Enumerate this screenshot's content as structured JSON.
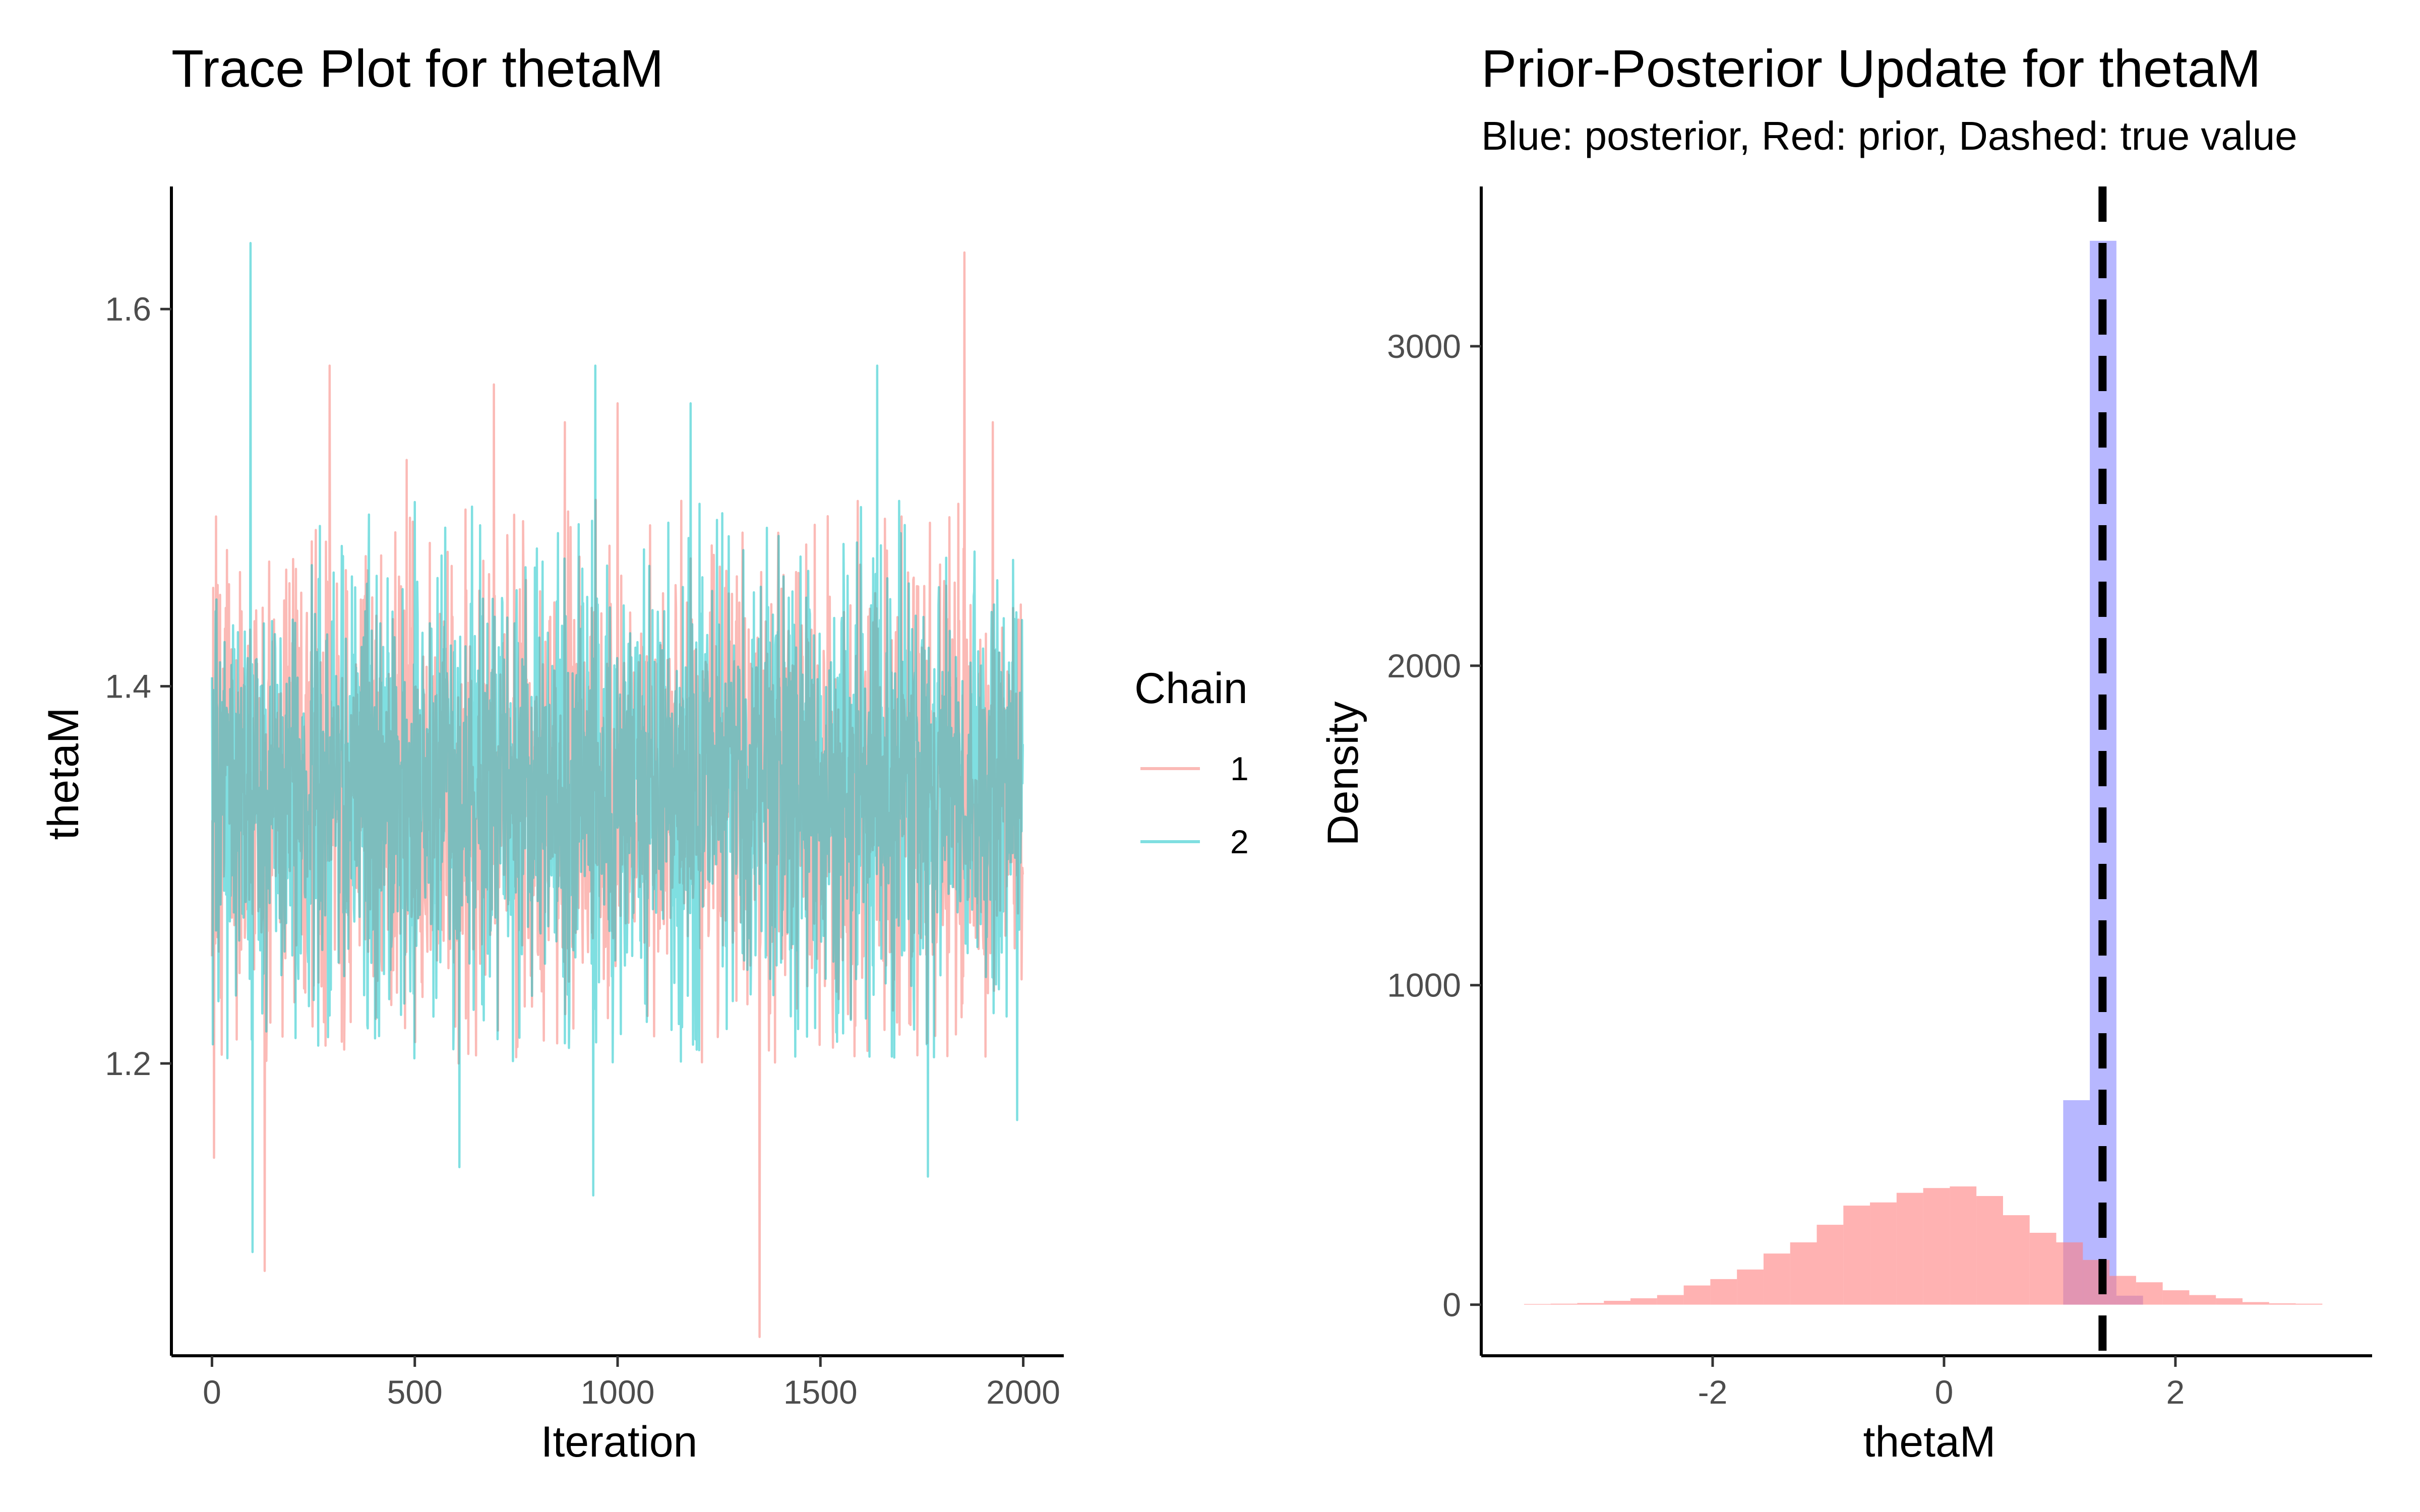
{
  "colors": {
    "chain1": "#f8766d",
    "chain2": "#00bfc4",
    "posterior": "#7070ff",
    "prior": "#ff7f7f",
    "true_value": "#000000"
  },
  "chart_data": [
    {
      "type": "line",
      "title": "Trace Plot for thetaM",
      "xlabel": "Iteration",
      "ylabel": "thetaM",
      "xlim": [
        -100,
        2100
      ],
      "ylim": [
        1.045,
        1.665
      ],
      "xticks": [
        {
          "value": 0,
          "label": "0"
        },
        {
          "value": 500,
          "label": "500"
        },
        {
          "value": 1000,
          "label": "1000"
        },
        {
          "value": 1500,
          "label": "1500"
        },
        {
          "value": 2000,
          "label": "2000"
        }
      ],
      "yticks": [
        {
          "value": 1.2,
          "label": "1.2"
        },
        {
          "value": 1.4,
          "label": "1.4"
        },
        {
          "value": 1.6,
          "label": "1.6"
        }
      ],
      "grid": false,
      "legend": {
        "title": "Chain",
        "position": "right"
      },
      "n_iterations": 2000,
      "series": [
        {
          "name": "1",
          "color": "#f8766d",
          "center": 1.345,
          "spread": 0.058,
          "extremes": [
            {
              "x": 5,
              "y": 1.15
            },
            {
              "x": 10,
              "y": 1.49
            },
            {
              "x": 130,
              "y": 1.09
            },
            {
              "x": 290,
              "y": 1.57
            },
            {
              "x": 480,
              "y": 1.52
            },
            {
              "x": 695,
              "y": 1.56
            },
            {
              "x": 870,
              "y": 1.54
            },
            {
              "x": 1000,
              "y": 1.55
            },
            {
              "x": 1350,
              "y": 1.055
            },
            {
              "x": 1700,
              "y": 1.49
            },
            {
              "x": 1855,
              "y": 1.63
            },
            {
              "x": 1925,
              "y": 1.54
            }
          ]
        },
        {
          "name": "2",
          "color": "#00bfc4",
          "center": 1.345,
          "spread": 0.058,
          "extremes": [
            {
              "x": 95,
              "y": 1.635
            },
            {
              "x": 100,
              "y": 1.1
            },
            {
              "x": 610,
              "y": 1.145
            },
            {
              "x": 940,
              "y": 1.13
            },
            {
              "x": 945,
              "y": 1.57
            },
            {
              "x": 1180,
              "y": 1.55
            },
            {
              "x": 1640,
              "y": 1.57
            },
            {
              "x": 1765,
              "y": 1.14
            },
            {
              "x": 1985,
              "y": 1.17
            }
          ]
        }
      ]
    },
    {
      "type": "bar",
      "title": "Prior-Posterior Update for thetaM",
      "subtitle": "Blue: posterior, Red: prior, Dashed: true value",
      "xlabel": "thetaM",
      "ylabel": "Density",
      "xlim": [
        -4.0,
        3.7
      ],
      "ylim": [
        -160,
        3500
      ],
      "xticks": [
        {
          "value": -2,
          "label": "-2"
        },
        {
          "value": 0,
          "label": "0"
        },
        {
          "value": 2,
          "label": "2"
        }
      ],
      "yticks": [
        {
          "value": 0,
          "label": "0"
        },
        {
          "value": 1000,
          "label": "1000"
        },
        {
          "value": 2000,
          "label": "2000"
        },
        {
          "value": 3000,
          "label": "3000"
        }
      ],
      "grid": false,
      "true_value": 1.37,
      "bin_width": 0.23,
      "prior_bins": [
        {
          "x0": -3.63,
          "value": 2
        },
        {
          "x0": -3.4,
          "value": 3
        },
        {
          "x0": -3.17,
          "value": 5
        },
        {
          "x0": -2.94,
          "value": 12
        },
        {
          "x0": -2.71,
          "value": 20
        },
        {
          "x0": -2.48,
          "value": 30
        },
        {
          "x0": -2.25,
          "value": 60
        },
        {
          "x0": -2.02,
          "value": 80
        },
        {
          "x0": -1.79,
          "value": 110
        },
        {
          "x0": -1.56,
          "value": 160
        },
        {
          "x0": -1.33,
          "value": 195
        },
        {
          "x0": -1.1,
          "value": 250
        },
        {
          "x0": -0.87,
          "value": 310
        },
        {
          "x0": -0.64,
          "value": 320
        },
        {
          "x0": -0.41,
          "value": 350
        },
        {
          "x0": -0.18,
          "value": 365
        },
        {
          "x0": 0.05,
          "value": 370
        },
        {
          "x0": 0.28,
          "value": 340
        },
        {
          "x0": 0.51,
          "value": 280
        },
        {
          "x0": 0.74,
          "value": 225
        },
        {
          "x0": 0.97,
          "value": 195
        },
        {
          "x0": 1.2,
          "value": 140
        },
        {
          "x0": 1.43,
          "value": 90
        },
        {
          "x0": 1.66,
          "value": 70
        },
        {
          "x0": 1.89,
          "value": 45
        },
        {
          "x0": 2.12,
          "value": 30
        },
        {
          "x0": 2.35,
          "value": 20
        },
        {
          "x0": 2.58,
          "value": 8
        },
        {
          "x0": 2.81,
          "value": 4
        },
        {
          "x0": 3.04,
          "value": 3
        }
      ],
      "posterior_bins": [
        {
          "x0": 1.03,
          "value": 640
        },
        {
          "x0": 1.26,
          "value": 3330
        },
        {
          "x0": 1.49,
          "value": 28
        }
      ]
    }
  ]
}
